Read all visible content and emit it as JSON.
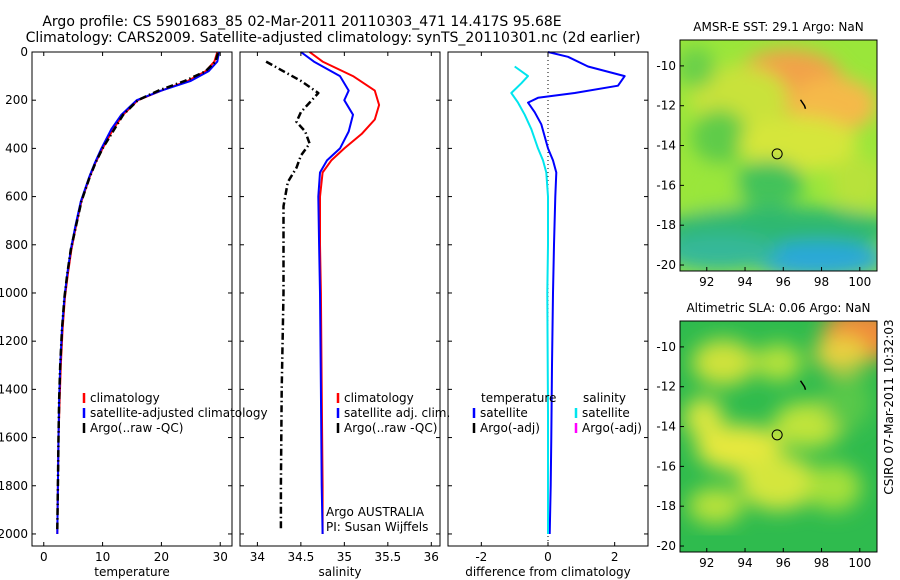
{
  "figure": {
    "title_line1": "Argo profile: CS 5901683_85 02-Mar-2011 20110303_471 14.417S 95.68E",
    "title_line2": "Climatology: CARS2009. Satellite-adjusted climatology: synTS_20110301.nc (2d earlier)",
    "footer_text": "CSIRO 07-Mar-2011 10:32:03"
  },
  "chart_data": [
    {
      "id": "temperature",
      "type": "line",
      "xlabel": "temperature",
      "xlim": [
        -2,
        32
      ],
      "ylim": [
        0,
        2050
      ],
      "y_reversed": true,
      "xticks": [
        0,
        10,
        20,
        30
      ],
      "yticks": [
        0,
        200,
        400,
        600,
        800,
        1000,
        1200,
        1400,
        1600,
        1800,
        2000
      ],
      "legend": {
        "placement": "lower-middle",
        "entries": [
          "climatology",
          "satellite-adjusted climatology",
          "Argo(..raw -QC)"
        ]
      },
      "series": [
        {
          "name": "climatology",
          "color": "#ff0000",
          "style": "solid",
          "x": [
            29.5,
            29.0,
            27.5,
            24.5,
            20.0,
            16.0,
            13.5,
            11.8,
            10.0,
            8.8,
            7.8,
            6.4,
            5.5,
            4.7,
            4.1,
            3.6,
            3.2,
            2.9,
            2.7,
            2.5,
            2.4,
            2.3
          ],
          "y": [
            0,
            40,
            80,
            120,
            160,
            200,
            260,
            320,
            400,
            460,
            520,
            620,
            720,
            820,
            920,
            1020,
            1150,
            1300,
            1450,
            1600,
            1800,
            2000
          ]
        },
        {
          "name": "satellite-adjusted climatology",
          "color": "#0000ff",
          "style": "solid",
          "x": [
            29.8,
            29.5,
            28.0,
            25.0,
            20.0,
            15.8,
            13.2,
            11.5,
            9.8,
            8.7,
            7.7,
            6.3,
            5.4,
            4.6,
            4.0,
            3.5,
            3.1,
            2.8,
            2.6,
            2.5,
            2.4,
            2.3
          ],
          "y": [
            0,
            40,
            80,
            120,
            160,
            200,
            260,
            320,
            400,
            460,
            520,
            620,
            720,
            820,
            920,
            1020,
            1150,
            1300,
            1450,
            1600,
            1800,
            2000
          ]
        },
        {
          "name": "Argo(..raw -QC)",
          "color": "#000000",
          "style": "dashdot",
          "x": [
            29.6,
            29.2,
            27.5,
            24.0,
            19.5,
            16.0,
            13.5,
            12.0,
            10.0,
            8.8,
            7.8,
            6.4,
            5.5,
            4.6,
            4.0,
            3.5,
            3.1,
            2.8,
            2.6,
            2.5,
            2.4,
            2.3
          ],
          "y": [
            5,
            40,
            80,
            120,
            160,
            200,
            260,
            320,
            400,
            460,
            520,
            620,
            720,
            820,
            920,
            1020,
            1150,
            1300,
            1450,
            1600,
            1800,
            1980
          ]
        }
      ]
    },
    {
      "id": "salinity",
      "type": "line",
      "xlabel": "salinity",
      "xlim": [
        33.8,
        36.1
      ],
      "ylim": [
        0,
        2050
      ],
      "y_reversed": true,
      "xticks": [
        34,
        34.5,
        35,
        35.5,
        36
      ],
      "legend": {
        "placement": "lower-right",
        "entries": [
          "climatology",
          "satellite adj. clim.",
          "Argo(..raw -QC)"
        ]
      },
      "annotations": [
        "Argo AUSTRALIA",
        "PI: Susan Wijffels"
      ],
      "series": [
        {
          "name": "climatology",
          "color": "#ff0000",
          "style": "solid",
          "x": [
            34.6,
            34.75,
            35.1,
            35.35,
            35.4,
            35.35,
            35.2,
            35.0,
            34.85,
            34.75,
            34.72,
            34.72,
            34.73,
            34.74,
            34.75,
            34.75
          ],
          "y": [
            0,
            40,
            100,
            160,
            220,
            280,
            340,
            400,
            450,
            500,
            600,
            800,
            1000,
            1400,
            1800,
            2000
          ]
        },
        {
          "name": "satellite adj. clim.",
          "color": "#0000ff",
          "style": "solid",
          "x": [
            34.5,
            34.65,
            34.95,
            35.05,
            35.0,
            35.1,
            35.05,
            34.95,
            34.8,
            34.72,
            34.7,
            34.71,
            34.72,
            34.73,
            34.74,
            34.75
          ],
          "y": [
            0,
            40,
            100,
            160,
            200,
            260,
            330,
            400,
            450,
            500,
            600,
            800,
            1000,
            1400,
            1800,
            2000
          ]
        },
        {
          "name": "Argo(..raw -QC)",
          "color": "#000000",
          "style": "dashdot",
          "x": [
            34.1,
            34.3,
            34.5,
            34.7,
            34.6,
            34.5,
            34.45,
            34.55,
            34.6,
            34.5,
            34.45,
            34.35,
            34.3,
            34.3,
            34.3,
            34.28,
            34.27,
            34.27
          ],
          "y": [
            40,
            80,
            120,
            170,
            210,
            250,
            290,
            330,
            380,
            430,
            480,
            540,
            640,
            800,
            1000,
            1400,
            1800,
            1980
          ]
        }
      ]
    },
    {
      "id": "difference",
      "type": "line",
      "xlabel": "difference from climatology",
      "xlim": [
        -3,
        3
      ],
      "ylim": [
        0,
        2050
      ],
      "y_reversed": true,
      "xticks": [
        -2,
        0,
        2
      ],
      "legend": {
        "placement": "lower-middle",
        "group_titles": [
          "temperature",
          "salinity"
        ],
        "entries": [
          "satellite",
          "Argo(-adj)",
          "satellite",
          "Argo(-adj)"
        ]
      },
      "series": [
        {
          "name": "satellite",
          "group": "temperature",
          "color": "#0000ff",
          "style": "solid",
          "x": [
            0.0,
            0.6,
            1.2,
            2.3,
            2.1,
            0.8,
            -0.3,
            -0.6,
            -0.4,
            -0.2,
            0.0,
            0.15,
            0.25,
            0.22,
            0.18,
            0.15,
            0.12,
            0.1,
            0.08,
            0.05
          ],
          "y": [
            0,
            20,
            60,
            100,
            140,
            170,
            190,
            210,
            250,
            300,
            400,
            450,
            500,
            600,
            800,
            1000,
            1300,
            1600,
            1800,
            2000
          ]
        },
        {
          "name": "satellite",
          "group": "salinity",
          "color": "#00e5ee",
          "style": "solid",
          "x": [
            -1.0,
            -0.6,
            -0.8,
            -1.1,
            -0.9,
            -0.7,
            -0.5,
            -0.3,
            -0.15,
            -0.05,
            0.0,
            0.0,
            -0.02,
            0.0,
            0.0
          ],
          "y": [
            60,
            100,
            130,
            170,
            210,
            260,
            320,
            400,
            450,
            500,
            600,
            800,
            1000,
            1500,
            2000
          ]
        }
      ]
    },
    {
      "id": "sst_map",
      "type": "heatmap",
      "title": "AMSR-E SST: 29.1 Argo: NaN",
      "xlim": [
        90.6,
        100.9
      ],
      "ylim": [
        -20.3,
        -8.7
      ],
      "xticks": [
        92,
        94,
        96,
        98,
        100
      ],
      "yticks": [
        -10,
        -12,
        -14,
        -16,
        -18,
        -20
      ],
      "marker": {
        "lon": 95.68,
        "lat": -14.417
      }
    },
    {
      "id": "sla_map",
      "type": "heatmap",
      "title": "Altimetric SLA: 0.06 Argo: NaN",
      "xlim": [
        90.6,
        100.9
      ],
      "ylim": [
        -20.3,
        -8.7
      ],
      "xticks": [
        92,
        94,
        96,
        98,
        100
      ],
      "yticks": [
        -10,
        -12,
        -14,
        -16,
        -18,
        -20
      ],
      "marker": {
        "lon": 95.68,
        "lat": -14.417
      }
    }
  ]
}
